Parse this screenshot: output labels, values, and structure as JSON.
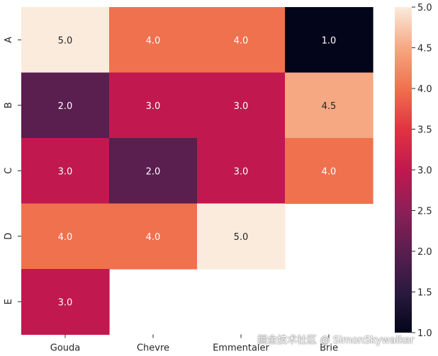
{
  "chart_data": {
    "type": "heatmap",
    "rows": [
      "A",
      "B",
      "C",
      "D",
      "E"
    ],
    "columns": [
      "Gouda",
      "Chevre",
      "Emmentaler",
      "Brie"
    ],
    "values": [
      [
        5.0,
        4.0,
        4.0,
        1.0
      ],
      [
        2.0,
        3.0,
        3.0,
        4.5
      ],
      [
        3.0,
        2.0,
        3.0,
        4.0
      ],
      [
        4.0,
        4.0,
        5.0,
        null
      ],
      [
        3.0,
        null,
        null,
        null
      ]
    ],
    "value_labels": [
      [
        "5.0",
        "4.0",
        "4.0",
        "1.0"
      ],
      [
        "2.0",
        "3.0",
        "3.0",
        "4.5"
      ],
      [
        "3.0",
        "2.0",
        "3.0",
        "4.0"
      ],
      [
        "4.0",
        "4.0",
        "5.0",
        ""
      ],
      [
        "3.0",
        "",
        "",
        ""
      ]
    ],
    "colormap": "rocket",
    "vmin": 1.0,
    "vmax": 5.0,
    "colorbar_ticks": [
      "1.0",
      "1.5",
      "2.0",
      "2.5",
      "3.0",
      "3.5",
      "4.0",
      "4.5",
      "5.0"
    ],
    "title": "",
    "xlabel": "",
    "ylabel": ""
  },
  "watermark": "掘金技术社区 @ SimonSkywalker"
}
